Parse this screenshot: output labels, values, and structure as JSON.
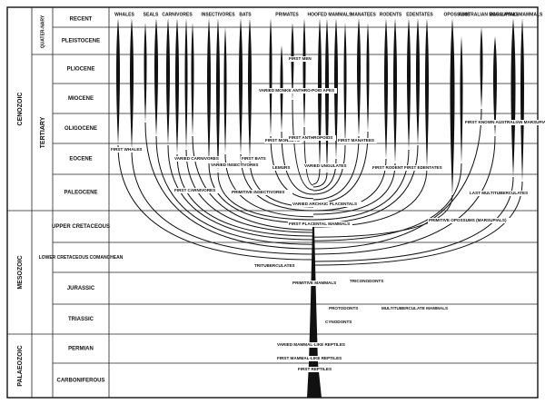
{
  "eras": [
    "CENOZOIC",
    "MESOZOIC",
    "PALAEOZOIC"
  ],
  "periods": [
    "QUATER-NARY",
    "TERTIARY"
  ],
  "epochs": [
    "RECENT",
    "PLEISTOCENE",
    "PLIOCENE",
    "MIOCENE",
    "OLIGOCENE",
    "EOCENE",
    "PALEOCENE",
    "UPPER CRETACEOUS",
    "LOWER CRETACEOUS COMANCHEAN",
    "JURASSIC",
    "TRIASSIC",
    "PERMIAN",
    "CARBONIFEROUS"
  ],
  "groups": [
    "WHALES",
    "SEALS",
    "CARNIVORES",
    "INSECTIVORES",
    "BATS",
    "PRIMATES",
    "HOOFED MAMMALS",
    "MANATEES",
    "RODENTS",
    "EDENTATES",
    "OPOSSUMS",
    "AUSTRALIAN MARSUPIALS",
    "EGG-LAYING MAMMALS"
  ],
  "annotations": [
    "FIRST MEN",
    "VARIED MONKEYS",
    "ANTHRO-POID APES",
    "FIRST MONKEYS",
    "FIRST ANTHROPOIDS",
    "FIRST MANATEES",
    "FIRST KNOWN AUSTRALIAN MARSUPIAL",
    "FIRST WHALES",
    "VARIED CARNIVORES",
    "VARIED INSECTIVORES",
    "FIRST BATS",
    "LEMURS",
    "VARIED UNGULATES",
    "FIRST RODENTS",
    "FIRST EDENTATES",
    "FIRST CARNIVORES",
    "PRIMITIVE INSECTIVORES",
    "LAST MULTITUBERCULATES",
    "VARIED ARCHAIC PLACENTALS",
    "FIRST PLACENTAL MAMMALS",
    "PRIMITIVE OPOSSUMS (MARSUPIALS)",
    "TRITUBERCULATES",
    "PRIMITIVE MAMMALS",
    "TRICONODONTS",
    "PROTODONTS",
    "MULTITUBERCULATE MAMMALS",
    "CYNODONTS",
    "VARIED MAMMAL-LIKE REPTILES",
    "FIRST MAMMAL-LIKE REPTILES",
    "FIRST REPTILES"
  ]
}
